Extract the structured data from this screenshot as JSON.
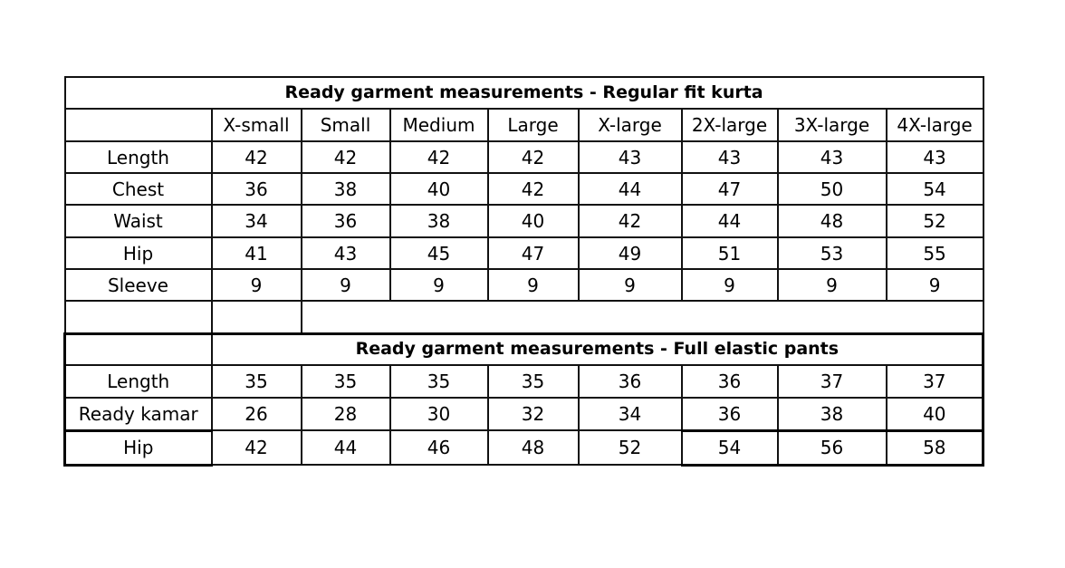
{
  "kurta": {
    "title": "Ready garment measurements - Regular fit kurta",
    "sizes": [
      "X-small",
      "Small",
      "Medium",
      "Large",
      "X-large",
      "2X-large",
      "3X-large",
      "4X-large"
    ],
    "rows": [
      {
        "label": "Length",
        "values": [
          "42",
          "42",
          "42",
          "42",
          "43",
          "43",
          "43",
          "43"
        ]
      },
      {
        "label": "Chest",
        "values": [
          "36",
          "38",
          "40",
          "42",
          "44",
          "47",
          "50",
          "54"
        ]
      },
      {
        "label": "Waist",
        "values": [
          "34",
          "36",
          "38",
          "40",
          "42",
          "44",
          "48",
          "52"
        ]
      },
      {
        "label": "Hip",
        "values": [
          "41",
          "43",
          "45",
          "47",
          "49",
          "51",
          "53",
          "55"
        ]
      },
      {
        "label": "Sleeve",
        "values": [
          "9",
          "9",
          "9",
          "9",
          "9",
          "9",
          "9",
          "9"
        ]
      }
    ]
  },
  "pants": {
    "title": "Ready garment measurements - Full elastic pants",
    "rows": [
      {
        "label": "Length",
        "values": [
          "35",
          "35",
          "35",
          "35",
          "36",
          "36",
          "37",
          "37"
        ]
      },
      {
        "label": "Ready kamar",
        "values": [
          "26",
          "28",
          "30",
          "32",
          "34",
          "36",
          "38",
          "40"
        ]
      },
      {
        "label": "Hip",
        "values": [
          "42",
          "44",
          "46",
          "48",
          "52",
          "54",
          "56",
          "58"
        ]
      }
    ]
  }
}
